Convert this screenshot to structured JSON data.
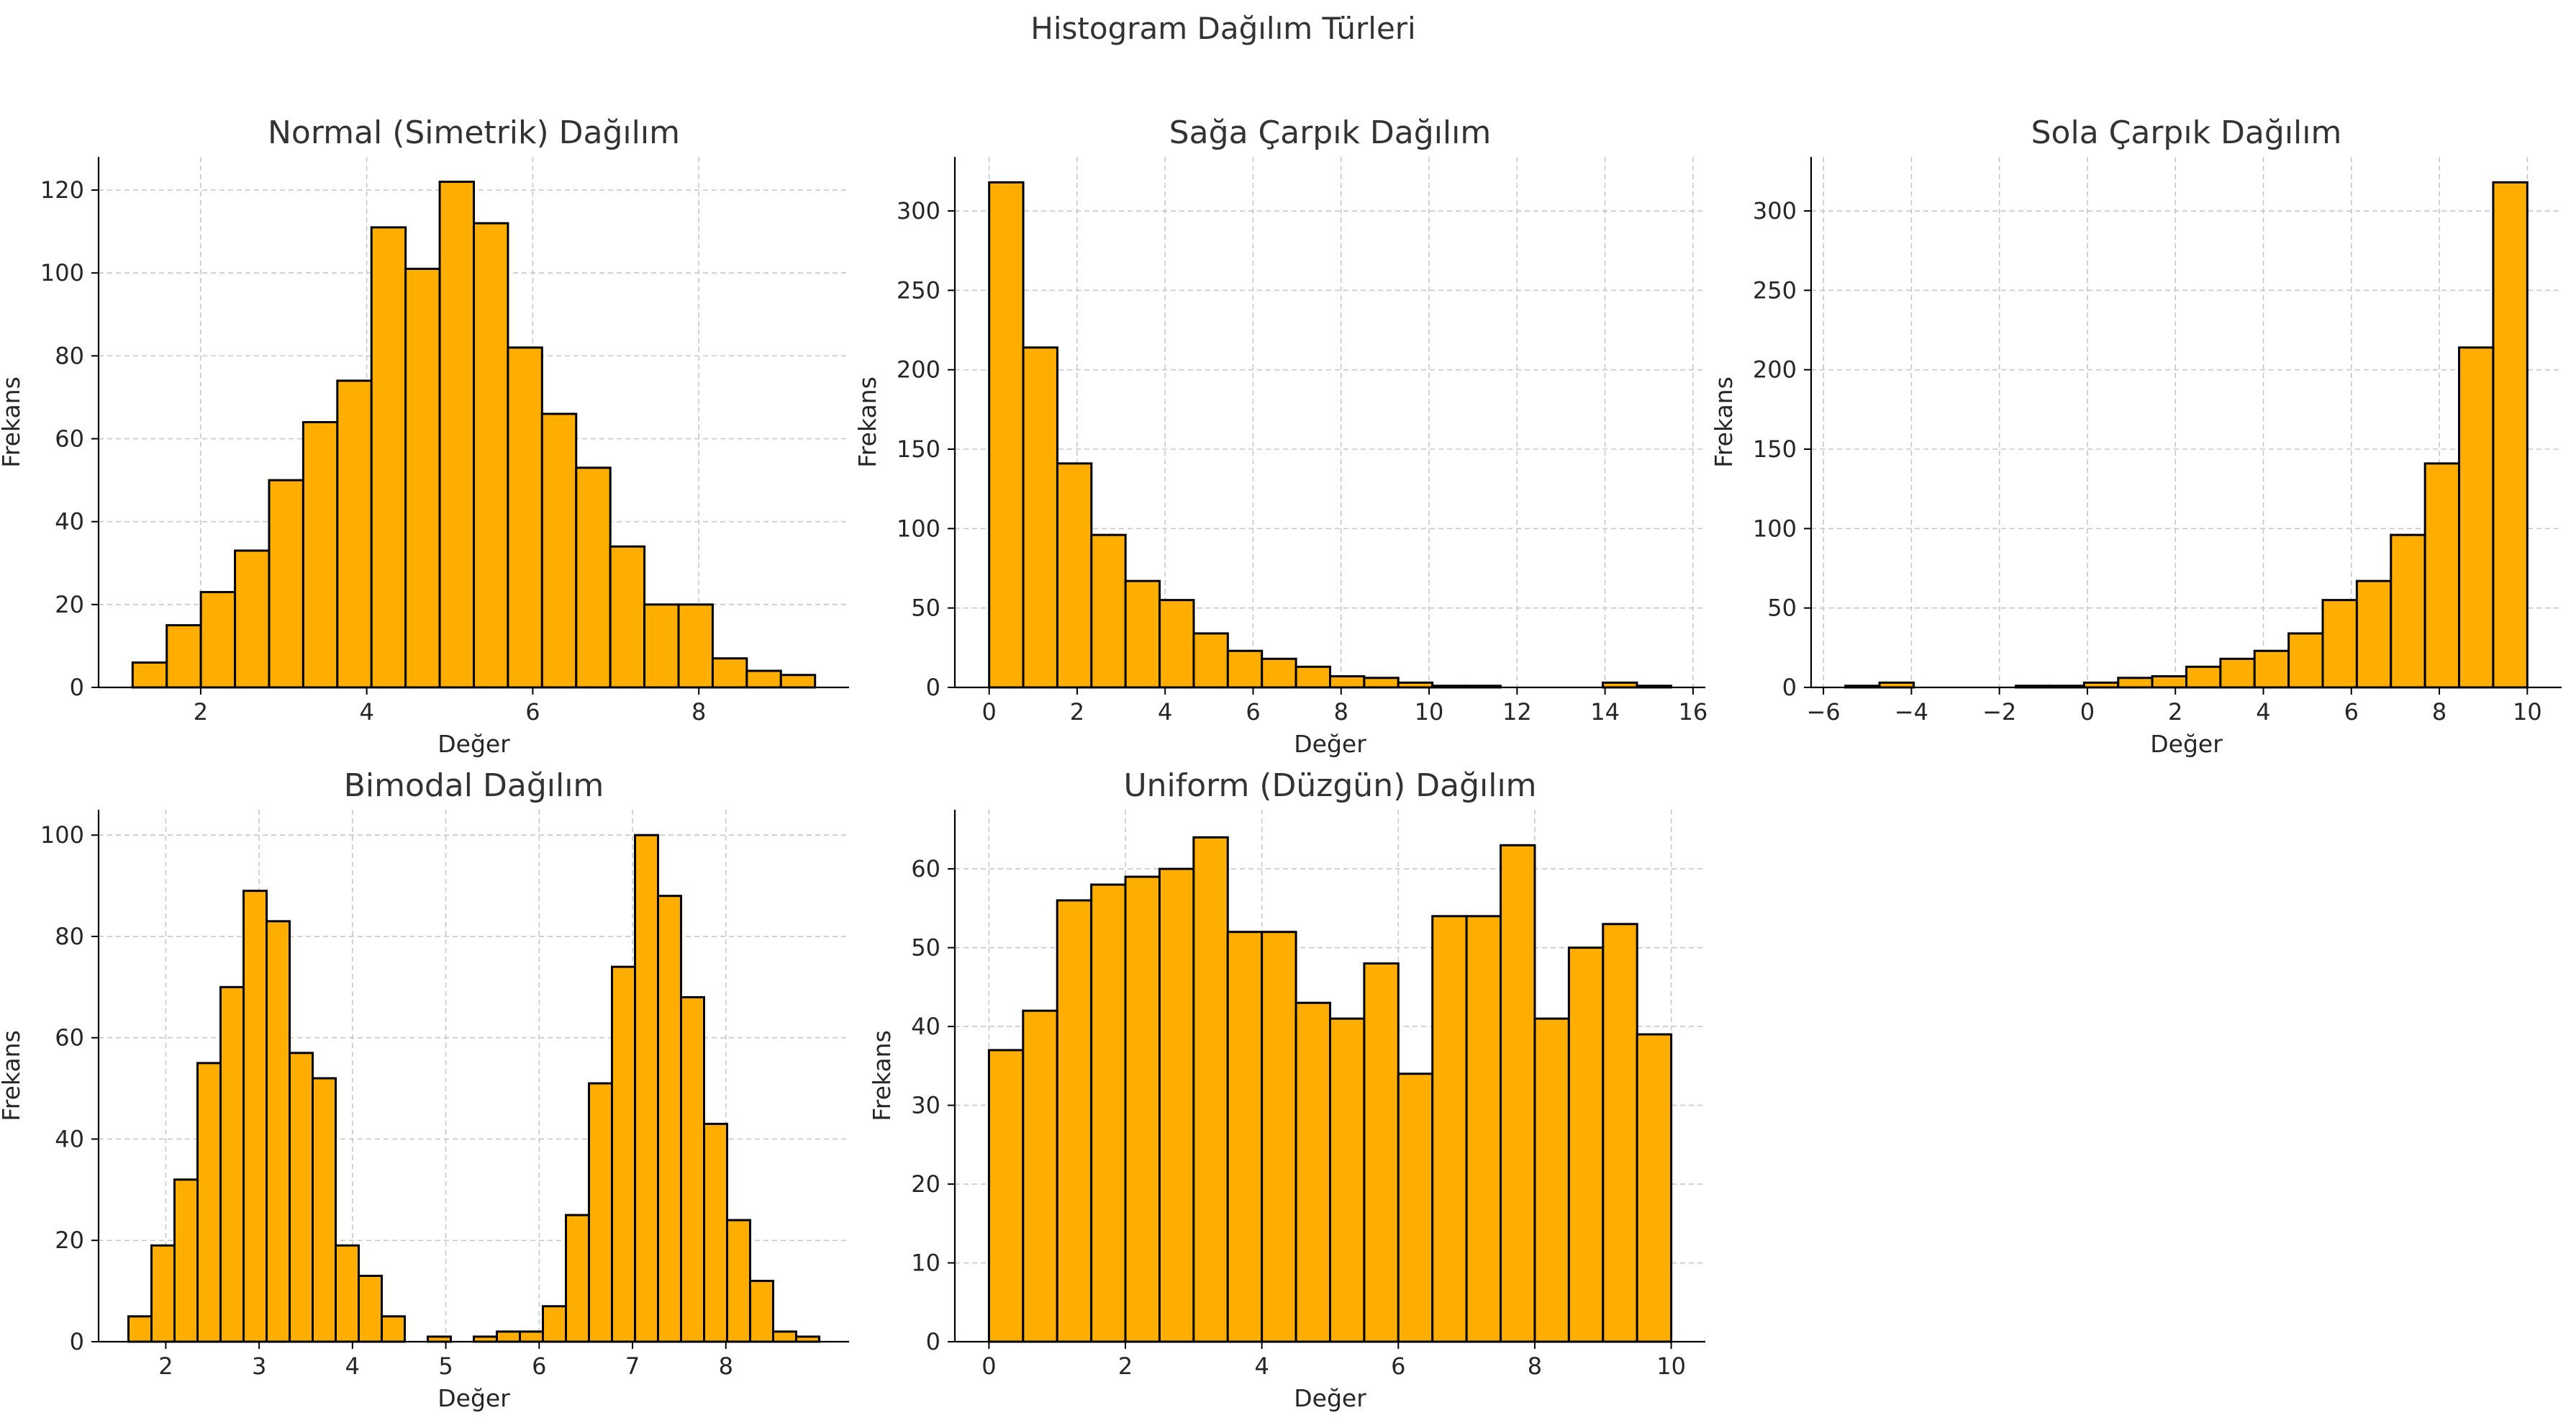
{
  "figure": {
    "suptitle": "Histogram Dağılım Türleri"
  },
  "colors": {
    "bar_fill": "#FFAE00",
    "bar_edge": "#000000",
    "grid": "#c8c8c8"
  },
  "chart_data": [
    {
      "type": "bar",
      "title": "Normal (Simetrik) Dağılım",
      "xlabel": "Değer",
      "ylabel": "Frekans",
      "bin_edges": [
        1.18,
        1.591,
        2.002,
        2.413,
        2.824,
        3.235,
        3.646,
        4.057,
        4.468,
        4.879,
        5.29,
        5.701,
        6.112,
        6.523,
        6.934,
        7.345,
        7.756,
        8.167,
        8.578,
        8.989,
        9.4
      ],
      "values": [
        6,
        15,
        23,
        33,
        50,
        64,
        74,
        111,
        101,
        122,
        112,
        82,
        66,
        53,
        34,
        20,
        20,
        7,
        4,
        3
      ],
      "xlim": [
        0.77,
        9.81
      ],
      "ylim": [
        0,
        128
      ],
      "xticks": [
        2,
        4,
        6,
        8
      ],
      "yticks": [
        0,
        20,
        40,
        60,
        80,
        100,
        120
      ],
      "grid": true
    },
    {
      "type": "bar",
      "title": "Sağa Çarpık Dağılım",
      "xlabel": "Değer",
      "ylabel": "Frekans",
      "bin_edges": [
        0.0,
        0.775,
        1.55,
        2.325,
        3.1,
        3.875,
        4.65,
        5.425,
        6.2,
        6.975,
        7.75,
        8.525,
        9.3,
        10.075,
        10.85,
        11.625,
        12.4,
        13.175,
        13.95,
        14.725,
        15.5
      ],
      "values": [
        318,
        214,
        141,
        96,
        67,
        55,
        34,
        23,
        18,
        13,
        7,
        6,
        3,
        1,
        1,
        0,
        0,
        0,
        3,
        1
      ],
      "xlim": [
        -0.78,
        16.28
      ],
      "ylim": [
        0,
        334
      ],
      "xticks": [
        0,
        2,
        4,
        6,
        8,
        10,
        12,
        14,
        16
      ],
      "yticks": [
        0,
        50,
        100,
        150,
        200,
        250,
        300
      ],
      "grid": true
    },
    {
      "type": "bar",
      "title": "Sola Çarpık Dağılım",
      "xlabel": "Değer",
      "ylabel": "Frekans",
      "bin_edges": [
        -5.5,
        -4.725,
        -3.95,
        -3.175,
        -2.4,
        -1.625,
        -0.85,
        -0.075,
        0.7,
        1.475,
        2.25,
        3.025,
        3.8,
        4.575,
        5.35,
        6.125,
        6.9,
        7.675,
        8.45,
        9.225,
        10.0
      ],
      "values": [
        1,
        3,
        0,
        0,
        0,
        1,
        1,
        3,
        6,
        7,
        13,
        18,
        23,
        34,
        55,
        67,
        96,
        141,
        214,
        318
      ],
      "xlim": [
        -6.28,
        10.78
      ],
      "ylim": [
        0,
        334
      ],
      "xticks": [
        -6,
        -4,
        -2,
        0,
        2,
        4,
        6,
        8,
        10
      ],
      "xtick_labels": [
        "−6",
        "−4",
        "−2",
        "0",
        "2",
        "4",
        "6",
        "8",
        "10"
      ],
      "yticks": [
        0,
        50,
        100,
        150,
        200,
        250,
        300
      ],
      "grid": true
    },
    {
      "type": "bar",
      "title": "Bimodal Dağılım",
      "xlabel": "Değer",
      "ylabel": "Frekans",
      "bin_edges": [
        1.6,
        1.8467,
        2.0933,
        2.34,
        2.5867,
        2.8333,
        3.08,
        3.3267,
        3.5733,
        3.82,
        4.0667,
        4.3133,
        4.56,
        4.8067,
        5.0533,
        5.3,
        5.5467,
        5.7933,
        6.04,
        6.2867,
        6.5333,
        6.78,
        7.0267,
        7.2733,
        7.52,
        7.7667,
        8.0133,
        8.26,
        8.5067,
        8.7533,
        9.0
      ],
      "values": [
        5,
        19,
        32,
        55,
        70,
        89,
        83,
        57,
        52,
        19,
        13,
        5,
        0,
        1,
        0,
        1,
        2,
        2,
        7,
        25,
        51,
        74,
        100,
        88,
        68,
        43,
        24,
        12,
        2,
        1
      ],
      "xlim": [
        1.28,
        9.32
      ],
      "ylim": [
        0,
        105
      ],
      "xticks": [
        2,
        3,
        4,
        5,
        6,
        7,
        8
      ],
      "yticks": [
        0,
        20,
        40,
        60,
        80,
        100
      ],
      "grid": true
    },
    {
      "type": "bar",
      "title": "Uniform (Düzgün) Dağılım",
      "xlabel": "Değer",
      "ylabel": "Frekans",
      "bin_edges": [
        0.0,
        0.5,
        1.0,
        1.5,
        2.0,
        2.5,
        3.0,
        3.5,
        4.0,
        4.5,
        5.0,
        5.5,
        6.0,
        6.5,
        7.0,
        7.5,
        8.0,
        8.5,
        9.0,
        9.5,
        10.0
      ],
      "values": [
        37,
        42,
        56,
        58,
        59,
        60,
        64,
        52,
        52,
        43,
        41,
        48,
        34,
        54,
        54,
        63,
        41,
        50,
        53,
        39
      ],
      "xlim": [
        -0.5,
        10.5
      ],
      "ylim": [
        0,
        67.5
      ],
      "xticks": [
        0,
        2,
        4,
        6,
        8,
        10
      ],
      "yticks": [
        0,
        10,
        20,
        30,
        40,
        50,
        60
      ],
      "grid": true
    }
  ]
}
